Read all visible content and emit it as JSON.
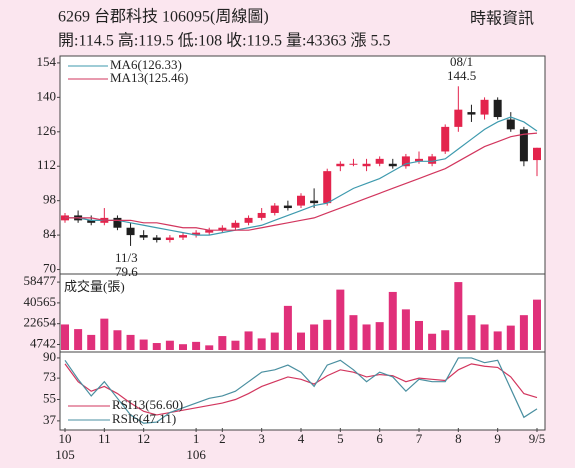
{
  "header": {
    "title": "6269  台郡科技 106095(周線圖)",
    "source": "時報資訊",
    "quote": "開:114.5 高:119.5 低:108 收:119.5 量:43363 漲 5.5"
  },
  "chart_data": [
    {
      "type": "candlestick",
      "open": [
        90,
        92,
        90,
        89,
        91,
        87,
        84,
        83,
        82,
        83,
        84,
        85,
        86,
        87,
        89,
        91,
        93,
        96,
        96,
        98,
        97,
        112,
        113,
        112,
        113,
        113,
        112,
        114,
        113,
        118,
        128,
        134,
        133,
        139,
        131,
        127,
        114.5
      ],
      "high": [
        93,
        94,
        92,
        95,
        92,
        89,
        86,
        84,
        84,
        85,
        86,
        87,
        88,
        90,
        92,
        95,
        97,
        98,
        101,
        103,
        111,
        114,
        115,
        115,
        116,
        115,
        117,
        118,
        117,
        129,
        144.5,
        137,
        140,
        140,
        134,
        128,
        119.5
      ],
      "low": [
        89,
        89,
        88,
        88,
        86,
        79.6,
        82,
        81,
        81,
        82,
        83,
        84,
        85,
        86,
        88,
        90,
        92,
        94,
        95,
        95,
        96,
        110,
        112,
        110,
        112,
        111,
        111,
        113,
        112,
        117,
        126,
        130,
        131,
        131,
        126,
        112,
        108
      ],
      "close": [
        92,
        90,
        89,
        91,
        87,
        84,
        83,
        82,
        83,
        84,
        85,
        86,
        87,
        89,
        91,
        93,
        96,
        95,
        100,
        97,
        110,
        113,
        113,
        113,
        115,
        112,
        116,
        115,
        116,
        128,
        135,
        133,
        139,
        132,
        127,
        114,
        119.5
      ],
      "up_color": "#e3244c",
      "down_color": "#1e1e1e",
      "series": [
        {
          "name": "MA6(126.33)",
          "color": "#3e9aae",
          "values": [
            91,
            91,
            90,
            90,
            90,
            89,
            88,
            87,
            86,
            85,
            84,
            84,
            85,
            86,
            87,
            88,
            90,
            92,
            94,
            96,
            97,
            100,
            103,
            105,
            107,
            110,
            113,
            114,
            114,
            115,
            119,
            123,
            127,
            130,
            132,
            130,
            126.33
          ]
        },
        {
          "name": "MA13(125.46)",
          "color": "#d2365e",
          "values": [
            91,
            91,
            91,
            90,
            90,
            90,
            89,
            89,
            88,
            87,
            87,
            86,
            86,
            86,
            86,
            87,
            88,
            89,
            90,
            91,
            93,
            95,
            97,
            99,
            101,
            103,
            105,
            107,
            109,
            111,
            114,
            117,
            120,
            122,
            124,
            125,
            125.46
          ]
        }
      ],
      "annotations": [
        "08/1",
        "144.5",
        "11/3",
        "79.6"
      ],
      "ylim": [
        69,
        156
      ],
      "yticks": [
        70,
        84,
        98,
        112,
        126,
        140,
        154
      ]
    },
    {
      "type": "bar",
      "title": "成交量(張)",
      "color": "#e0307a",
      "values": [
        22000,
        18000,
        13000,
        27000,
        17000,
        13000,
        9000,
        6000,
        8000,
        5000,
        7000,
        4000,
        12000,
        8000,
        16000,
        10000,
        15000,
        38000,
        15000,
        22000,
        26000,
        52000,
        30000,
        22000,
        24000,
        50000,
        35000,
        25000,
        14000,
        17000,
        58477,
        30000,
        22000,
        16000,
        21000,
        30000,
        43363
      ],
      "ylim": [
        0,
        62000
      ],
      "yticks": [
        4742,
        22654,
        40565,
        58477
      ]
    },
    {
      "type": "line",
      "series": [
        {
          "name": "RSI13(56.60)",
          "color": "#d2365e",
          "values": [
            85,
            70,
            62,
            66,
            60,
            52,
            45,
            42,
            44,
            46,
            48,
            50,
            52,
            55,
            60,
            66,
            70,
            74,
            72,
            68,
            75,
            80,
            78,
            74,
            76,
            75,
            70,
            73,
            72,
            71,
            80,
            85,
            83,
            82,
            74,
            60,
            56.6
          ]
        },
        {
          "name": "RSI6(47.11)",
          "color": "#4a8fa0",
          "values": [
            88,
            72,
            58,
            70,
            56,
            42,
            35,
            36,
            44,
            48,
            52,
            56,
            58,
            62,
            70,
            78,
            80,
            84,
            78,
            66,
            84,
            88,
            80,
            70,
            78,
            74,
            62,
            72,
            70,
            70,
            90,
            90,
            86,
            88,
            64,
            40,
            47.11
          ]
        }
      ],
      "ylim": [
        31,
        95
      ],
      "yticks": [
        37,
        55,
        73,
        90
      ],
      "xticks": [
        {
          "value": 0,
          "label": "10"
        },
        {
          "value": 3,
          "label": "11"
        },
        {
          "value": 6,
          "label": "12"
        },
        {
          "value": 10,
          "label": "1"
        },
        {
          "value": 12,
          "label": "2"
        },
        {
          "value": 15,
          "label": "3"
        },
        {
          "value": 18,
          "label": "4"
        },
        {
          "value": 21,
          "label": "5"
        },
        {
          "value": 24,
          "label": "6"
        },
        {
          "value": 27,
          "label": "7"
        },
        {
          "value": 30,
          "label": "8"
        },
        {
          "value": 33,
          "label": "9"
        },
        {
          "value": 36,
          "label": "9/5"
        }
      ],
      "year_labels": [
        {
          "value": 0,
          "label": "105"
        },
        {
          "value": 10,
          "label": "106"
        }
      ]
    }
  ]
}
